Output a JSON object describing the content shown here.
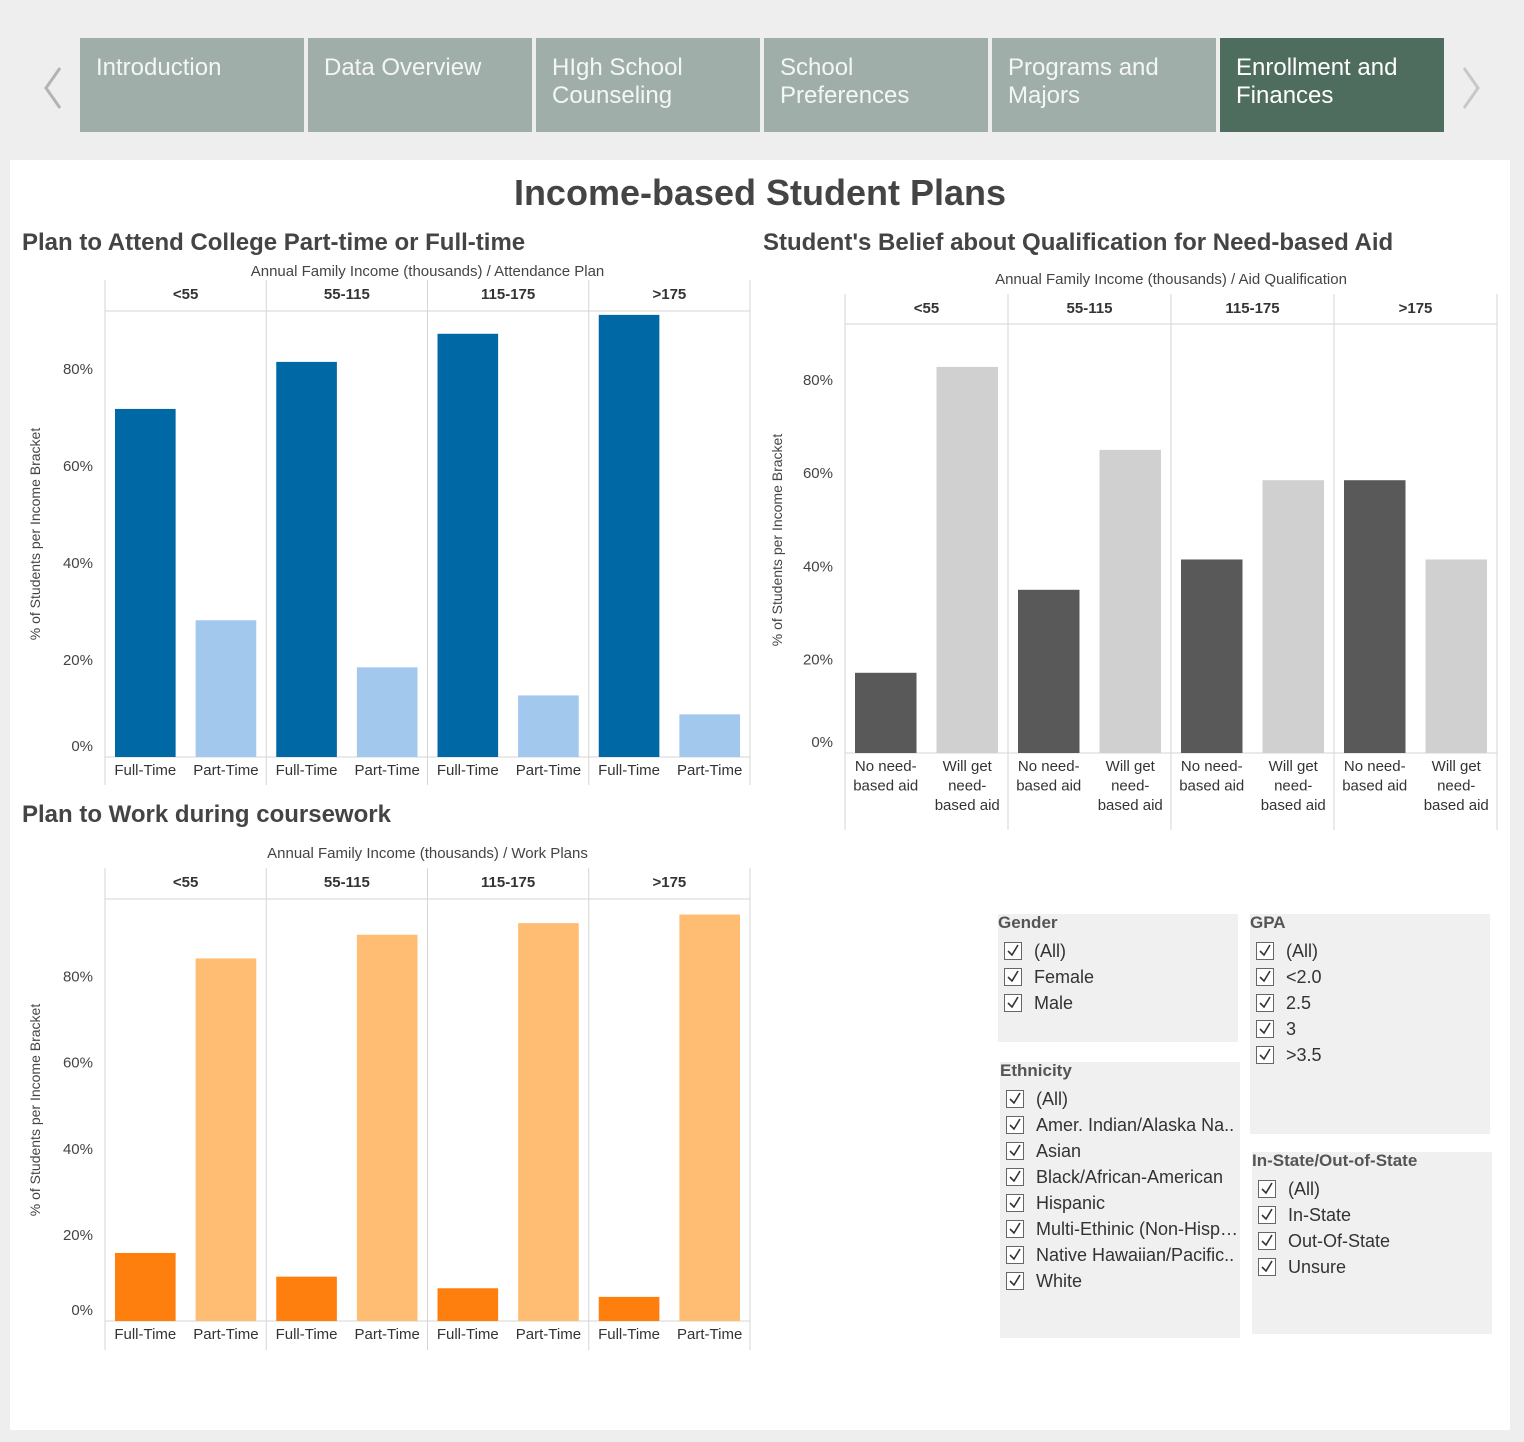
{
  "tabs": [
    {
      "label": "Introduction",
      "active": false
    },
    {
      "label": "Data Overview",
      "active": false
    },
    {
      "label": "HIgh School Counseling",
      "active": false
    },
    {
      "label": "School Preferences",
      "active": false
    },
    {
      "label": "Programs and Majors",
      "active": false
    },
    {
      "label": "Enrollment and Finances",
      "active": true
    }
  ],
  "nav": {
    "prev_icon": "chevron-left-icon",
    "next_icon": "chevron-right-icon"
  },
  "dashboard": {
    "title": "Income-based Student Plans"
  },
  "charts": {
    "attendance": {
      "title": "Plan to Attend College Part-time or Full-time"
    },
    "aid": {
      "title": "Student's Belief about Qualification for Need-based Aid"
    },
    "work": {
      "title": "Plan to Work during coursework"
    }
  },
  "chart_data": [
    {
      "id": "attendance",
      "type": "bar",
      "title": "Plan to Attend College Part-time or Full-time",
      "header": "Annual Family Income (thousands)  /  Attendance Plan",
      "ylabel": "% of Students per Income Bracket",
      "ylim": [
        0,
        92
      ],
      "yticks": [
        0,
        20,
        40,
        60,
        80
      ],
      "ytick_labels": [
        "0%",
        "20%",
        "40%",
        "60%",
        "80%"
      ],
      "groups": [
        "<55",
        "55-115",
        "115-175",
        ">175"
      ],
      "categories": [
        "Full-Time",
        "Part-Time"
      ],
      "colors": [
        "#0068a5",
        "#a3c8ee"
      ],
      "values": [
        [
          71.8,
          28.2
        ],
        [
          81.5,
          18.5
        ],
        [
          87.3,
          12.7
        ],
        [
          91.2,
          8.8
        ]
      ],
      "grid": false
    },
    {
      "id": "aid",
      "type": "bar",
      "title": "Student's Belief about Qualification for Need-based Aid",
      "header": "Annual Family Income (thousands)  /  Aid Qualification",
      "ylabel": "% of Students per Income Bracket",
      "ylim": [
        0,
        92
      ],
      "yticks": [
        0,
        20,
        40,
        60,
        80
      ],
      "ytick_labels": [
        "0%",
        "20%",
        "40%",
        "60%",
        "80%"
      ],
      "groups": [
        "<55",
        "55-115",
        "115-175",
        ">175"
      ],
      "categories": [
        "No need-based aid",
        "Will get need-based aid"
      ],
      "category_lines": [
        [
          "No need-",
          "based aid"
        ],
        [
          "Will get",
          "need-",
          "based aid"
        ]
      ],
      "colors": [
        "#595959",
        "#d0d0d0"
      ],
      "values": [
        [
          17.2,
          82.8
        ],
        [
          35.0,
          65.0
        ],
        [
          41.5,
          58.5
        ],
        [
          58.5,
          41.5
        ]
      ],
      "grid": false
    },
    {
      "id": "work",
      "type": "bar",
      "title": "Plan to Work during coursework",
      "header": "Annual Family Income (thousands)  /  Work Plans",
      "ylabel": "% of Students per Income Bracket",
      "ylim": [
        0,
        98
      ],
      "yticks": [
        0,
        20,
        40,
        60,
        80
      ],
      "ytick_labels": [
        "0%",
        "20%",
        "40%",
        "60%",
        "80%"
      ],
      "groups": [
        "<55",
        "55-115",
        "115-175",
        ">175"
      ],
      "categories": [
        "Full-Time",
        "Part-Time"
      ],
      "colors": [
        "#ff7f0e",
        "#ffbd73"
      ],
      "values": [
        [
          15.8,
          84.2
        ],
        [
          10.3,
          89.7
        ],
        [
          7.6,
          92.4
        ],
        [
          5.6,
          94.4
        ]
      ],
      "grid": false
    }
  ],
  "filters": {
    "gender": {
      "title": "Gender",
      "items": [
        "(All)",
        "Female",
        "Male"
      ]
    },
    "gpa": {
      "title": "GPA",
      "items": [
        "(All)",
        "<2.0",
        "2.5",
        "3",
        ">3.5"
      ]
    },
    "ethnicity": {
      "title": "Ethnicity",
      "items": [
        "(All)",
        "Amer. Indian/Alaska Na..",
        "Asian",
        "Black/African-American",
        "Hispanic",
        "Multi-Ethinic (Non-Hisp…",
        "Native Hawaiian/Pacific..",
        "White"
      ]
    },
    "state": {
      "title": "In-State/Out-of-State",
      "items": [
        "(All)",
        "In-State",
        "Out-Of-State",
        "Unsure"
      ]
    }
  }
}
